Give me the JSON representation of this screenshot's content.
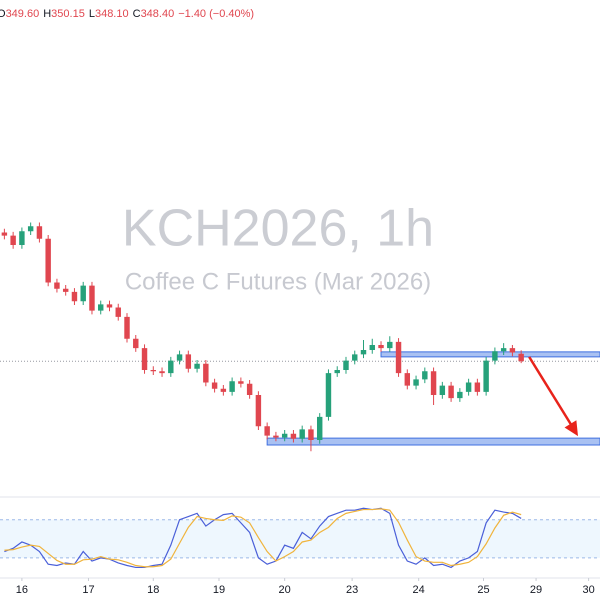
{
  "chart_data": {
    "type": "candlestick",
    "title": "KCH2026, 1h",
    "subtitle": "Coffee C Futures (Mar 2026)",
    "ohlc_labels": [
      "O",
      "H",
      "L",
      "C"
    ],
    "ohlc_values": [
      "349.60",
      "350.15",
      "348.10",
      "348.40"
    ],
    "change": "−1.40 (−0.40%)",
    "up_color": "#26a17a",
    "down_color": "#e0464f",
    "open": [
      369.0,
      368.5,
      367.0,
      369.2,
      370.0,
      368.0,
      361.0,
      360.0,
      359.5,
      358.0,
      360.5,
      356.5,
      357.5,
      357.0,
      355.5,
      352.0,
      350.5,
      347.0,
      346.8,
      346.5,
      348.5,
      349.5,
      347.2,
      348.0,
      345.0,
      344.0,
      343.5,
      345.2,
      344.8,
      343.0,
      338.0,
      336.5,
      336.2,
      336.8,
      336.0,
      337.5,
      335.8,
      339.5,
      346.5,
      347.0,
      348.5,
      349.5,
      350.2,
      351.0,
      350.5,
      351.5,
      346.5,
      344.5,
      345.5,
      346.8,
      343.0,
      344.5,
      342.5,
      343.5,
      345.0,
      343.5,
      348.5,
      350.0,
      350.5,
      349.6
    ],
    "high": [
      369.6,
      369.1,
      369.8,
      370.6,
      370.6,
      368.6,
      361.6,
      360.6,
      360.1,
      361.1,
      361.1,
      358.1,
      358.1,
      357.6,
      356.1,
      352.6,
      351.1,
      347.6,
      347.4,
      349.1,
      350.1,
      350.1,
      348.6,
      348.6,
      345.6,
      344.6,
      345.8,
      345.8,
      345.4,
      343.6,
      338.6,
      337.1,
      337.4,
      337.4,
      338.1,
      338.1,
      340.1,
      347.1,
      347.6,
      349.1,
      350.1,
      351.8,
      352.0,
      351.6,
      352.4,
      352.1,
      347.1,
      346.1,
      347.4,
      347.4,
      345.1,
      345.1,
      344.1,
      345.6,
      345.6,
      349.1,
      350.6,
      351.3,
      351.0,
      350.15
    ],
    "low": [
      367.9,
      366.4,
      366.4,
      368.6,
      367.4,
      360.4,
      359.4,
      358.9,
      357.4,
      357.4,
      355.9,
      355.9,
      356.4,
      354.9,
      351.4,
      349.9,
      346.4,
      346.2,
      345.9,
      345.9,
      347.9,
      346.6,
      346.6,
      344.4,
      343.4,
      342.9,
      342.9,
      344.2,
      342.4,
      337.4,
      335.9,
      335.6,
      335.6,
      335.4,
      335.4,
      334.0,
      335.2,
      338.9,
      345.9,
      346.4,
      347.9,
      348.9,
      349.6,
      349.9,
      349.9,
      345.9,
      343.9,
      343.9,
      344.9,
      341.4,
      342.4,
      341.9,
      341.9,
      342.9,
      342.9,
      342.9,
      347.9,
      349.4,
      349.2,
      348.1
    ],
    "close": [
      368.5,
      367.0,
      369.2,
      370.0,
      368.0,
      361.0,
      360.0,
      359.5,
      358.0,
      360.5,
      356.5,
      357.5,
      357.0,
      355.5,
      352.0,
      350.5,
      347.0,
      346.8,
      346.5,
      348.5,
      349.5,
      347.2,
      348.0,
      345.0,
      344.0,
      343.5,
      345.2,
      344.8,
      343.0,
      338.0,
      336.5,
      336.2,
      336.8,
      336.0,
      337.5,
      335.8,
      339.5,
      346.5,
      347.0,
      348.5,
      349.5,
      350.2,
      351.0,
      350.5,
      351.5,
      346.5,
      344.5,
      345.5,
      346.8,
      343.0,
      344.5,
      342.5,
      343.5,
      345.0,
      343.5,
      348.5,
      350.0,
      350.5,
      349.8,
      348.4
    ],
    "ylim": [
      326.2,
      406.2
    ],
    "xlim": [
      -0.5,
      68
    ],
    "xticks": [
      {
        "value": 2,
        "label": "16"
      },
      {
        "value": 9.6,
        "label": "17"
      },
      {
        "value": 17,
        "label": "18"
      },
      {
        "value": 24.5,
        "label": "19"
      },
      {
        "value": 32,
        "label": "20"
      },
      {
        "value": 39.7,
        "label": "23"
      },
      {
        "value": 47.3,
        "label": "24"
      },
      {
        "value": 54.7,
        "label": "25"
      },
      {
        "value": 60.7,
        "label": "29"
      },
      {
        "value": 66.7,
        "label": "30"
      }
    ],
    "zones": [
      {
        "low": 349.1,
        "high": 349.9,
        "start": 43
      },
      {
        "low": 335.0,
        "high": 336.1,
        "start": 30
      }
    ],
    "zone_color": "#a9c1f2",
    "arrow_color": "#e8231b",
    "stochastic": {
      "ylim": [
        0,
        100
      ],
      "band": [
        20,
        80
      ],
      "series": [
        {
          "color": "#4a5fd8",
          "values": [
            30,
            35,
            45,
            40,
            30,
            10,
            8,
            12,
            10,
            30,
            15,
            20,
            18,
            12,
            8,
            5,
            5,
            8,
            10,
            40,
            80,
            85,
            90,
            70,
            80,
            88,
            90,
            75,
            60,
            20,
            10,
            15,
            40,
            35,
            60,
            50,
            70,
            85,
            90,
            95,
            95,
            98,
            96,
            98,
            90,
            40,
            15,
            10,
            20,
            8,
            10,
            5,
            15,
            20,
            30,
            75,
            95,
            92,
            90,
            82
          ]
        },
        {
          "color": "#f0b43c",
          "values": [
            32,
            33,
            37,
            40,
            38,
            27,
            16,
            10,
            10,
            17,
            18,
            22,
            18,
            17,
            13,
            8,
            6,
            6,
            8,
            18,
            43,
            68,
            85,
            82,
            80,
            79,
            86,
            84,
            75,
            52,
            30,
            15,
            22,
            30,
            45,
            48,
            60,
            68,
            82,
            90,
            93,
            96,
            96,
            97,
            95,
            76,
            48,
            22,
            15,
            13,
            13,
            8,
            10,
            13,
            22,
            42,
            67,
            87,
            92,
            88
          ]
        }
      ]
    }
  }
}
